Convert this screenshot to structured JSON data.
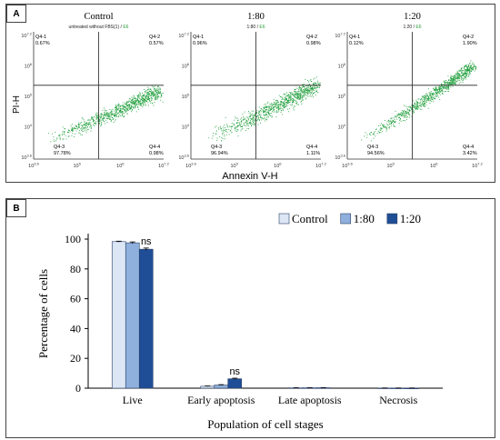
{
  "panel_a": {
    "tag": "A",
    "ylabel": "PI-H",
    "xlabel": "Annexin V-H",
    "plots": [
      {
        "title": "Control",
        "subtitle_black": "untreated without FBS(1) /",
        "subtitle_green": "E6",
        "q1": "Q4-1",
        "q1v": "0.67%",
        "q2": "Q4-2",
        "q2v": "0.57%",
        "q3": "Q4-3",
        "q3v": "97.78%",
        "q4": "Q4-4",
        "q4v": "0.98%"
      },
      {
        "title": "1:80",
        "subtitle_black": "1:80 /",
        "subtitle_green": "E6",
        "q1": "Q4-1",
        "q1v": "0.96%",
        "q2": "Q4-2",
        "q2v": "0.98%",
        "q3": "Q4-3",
        "q3v": "96.94%",
        "q4": "Q4-4",
        "q4v": "1.11%"
      },
      {
        "title": "1:20",
        "subtitle_black": "1:20 /",
        "subtitle_green": "E6",
        "q1": "Q4-1",
        "q1v": "0.12%",
        "q2": "Q4-2",
        "q2v": "1.90%",
        "q3": "Q4-3",
        "q3v": "94.56%",
        "q4": "Q4-4",
        "q4v": "3.42%"
      }
    ],
    "xticks": [
      "10^3.6",
      "10^5",
      "10^6",
      "10^7.2"
    ],
    "yticks": [
      "10^7.2",
      "10^6",
      "10^5",
      "10^4",
      "10^3.6"
    ],
    "dot_color": "#1e9e3a",
    "green_text": "#2a9d3a"
  },
  "chart_data": {
    "type": "bar",
    "tag": "B",
    "categories": [
      "Live",
      "Early apoptosis",
      "Late apoptosis",
      "Necrosis"
    ],
    "series": [
      {
        "name": "Control",
        "values": [
          98.3,
          1.3,
          0.3,
          0.1
        ],
        "errors": [
          0.3,
          0.2,
          0.1,
          0.05
        ],
        "color": "#dce6f4"
      },
      {
        "name": "1:80",
        "values": [
          97.5,
          2.1,
          0.3,
          0.1
        ],
        "errors": [
          0.6,
          0.3,
          0.1,
          0.05
        ],
        "color": "#8fb0dc"
      },
      {
        "name": "1:20",
        "values": [
          93.2,
          6.3,
          0.3,
          0.1
        ],
        "errors": [
          0.8,
          0.4,
          0.1,
          0.05
        ],
        "color": "#1f4e96"
      }
    ],
    "annotations": [
      {
        "category": "Live",
        "text": "ns"
      },
      {
        "category": "Early apoptosis",
        "text": "ns"
      }
    ],
    "xlabel": "Population of cell stages",
    "ylabel": "Percentage of cells",
    "ylim": [
      0,
      100
    ],
    "yticks": [
      0,
      20,
      40,
      60,
      80,
      100
    ],
    "grid": false,
    "legend_position": "top-right"
  }
}
